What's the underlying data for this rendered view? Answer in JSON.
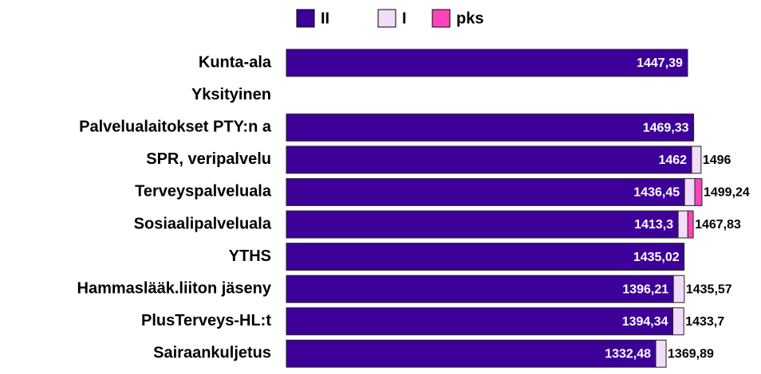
{
  "chart_data": {
    "type": "stacked-hbar",
    "categories": [
      "Kunta-ala",
      "Yksityinen",
      "Palvelualaitokset PTY:n a",
      "SPR, veripalvelu",
      "Terveyspalveluala",
      "Sosiaalipalveluala",
      "YTHS",
      "Hammaslääk.liiton jäseny",
      "PlusTerveys-HL:t",
      "Sairaankuljetus"
    ],
    "series": [
      {
        "name": "II",
        "color": "#3d0099",
        "values": [
          1447.39,
          null,
          1469.33,
          1462,
          1436.45,
          1413.3,
          1435.02,
          1396.21,
          1394.34,
          1332.48
        ],
        "value_labels": [
          "1447,39",
          null,
          "1469,33",
          "1462",
          "1436,45",
          "1413,3",
          "1435,02",
          "1396,21",
          "1394,34",
          "1332,48"
        ]
      },
      {
        "name": "I",
        "color": "#f2dcfa",
        "values": [
          null,
          null,
          null,
          34,
          37,
          35,
          null,
          39.36,
          39.36,
          37.41
        ]
      },
      {
        "name": "pks",
        "color": "#ff44bb",
        "values": [
          null,
          null,
          null,
          null,
          25.79,
          19.53,
          null,
          null,
          null,
          null
        ]
      }
    ],
    "totals": {
      "values": [
        null,
        null,
        null,
        1496,
        1499.24,
        1467.83,
        null,
        1435.57,
        1433.7,
        1369.89
      ],
      "value_labels": [
        null,
        null,
        null,
        "1496",
        "1499,24",
        "1467,83",
        null,
        "1435,57",
        "1433,7",
        "1369,89"
      ]
    },
    "xlim": [
      0,
      1600
    ],
    "legend": "top"
  }
}
